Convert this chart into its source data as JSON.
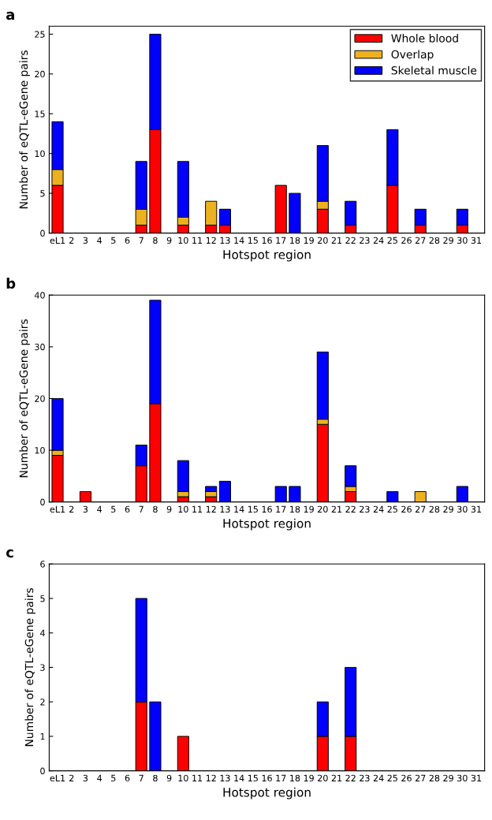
{
  "chart_data": [
    {
      "type": "bar",
      "title": "a",
      "xlabel": "Hotspot region",
      "ylabel": "Number of eQTL-eGene pairs",
      "stacked": true,
      "legend": "top right",
      "ylim": [
        0,
        26
      ],
      "yticks": [
        0,
        5,
        10,
        15,
        20,
        25
      ],
      "grid": false,
      "categories": [
        "eL1",
        "2",
        "3",
        "4",
        "5",
        "6",
        "7",
        "8",
        "9",
        "10",
        "11",
        "12",
        "13",
        "14",
        "15",
        "16",
        "17",
        "18",
        "19",
        "20",
        "21",
        "22",
        "23",
        "24",
        "25",
        "26",
        "27",
        "28",
        "29",
        "30",
        "31"
      ],
      "series": [
        {
          "name": "Whole blood",
          "color": "#ff0000",
          "values": [
            6,
            0,
            0,
            0,
            0,
            0,
            1,
            13,
            0,
            1,
            0,
            1,
            1,
            0,
            0,
            0,
            6,
            0,
            0,
            3,
            0,
            1,
            0,
            0,
            6,
            0,
            1,
            0,
            0,
            1,
            0
          ]
        },
        {
          "name": "Overlap",
          "color": "#edb120",
          "values": [
            2,
            0,
            0,
            0,
            0,
            0,
            2,
            0,
            0,
            1,
            0,
            3,
            0,
            0,
            0,
            0,
            0,
            0,
            0,
            1,
            0,
            0,
            0,
            0,
            0,
            0,
            0,
            0,
            0,
            0,
            0
          ]
        },
        {
          "name": "Skeletal muscle",
          "color": "#0000ff",
          "values": [
            6,
            0,
            0,
            0,
            0,
            0,
            6,
            12,
            0,
            7,
            0,
            0,
            2,
            0,
            0,
            0,
            0,
            5,
            0,
            7,
            0,
            3,
            0,
            0,
            7,
            0,
            2,
            0,
            0,
            2,
            0
          ]
        }
      ]
    },
    {
      "type": "bar",
      "title": "b",
      "xlabel": "Hotspot region",
      "ylabel": "Number of eQTL-eGene pairs",
      "stacked": true,
      "ylim": [
        0,
        40
      ],
      "yticks": [
        0,
        10,
        20,
        30,
        40
      ],
      "grid": false,
      "categories": [
        "eL1",
        "2",
        "3",
        "4",
        "5",
        "6",
        "7",
        "8",
        "9",
        "10",
        "11",
        "12",
        "13",
        "14",
        "15",
        "16",
        "17",
        "18",
        "19",
        "20",
        "21",
        "22",
        "23",
        "24",
        "25",
        "26",
        "27",
        "28",
        "29",
        "30",
        "31"
      ],
      "series": [
        {
          "color": "#ff0000",
          "values": [
            9,
            0,
            2,
            0,
            0,
            0,
            7,
            19,
            0,
            1,
            0,
            1,
            0,
            0,
            0,
            0,
            0,
            0,
            0,
            15,
            0,
            2,
            0,
            0,
            0,
            0,
            0,
            0,
            0,
            0,
            0
          ]
        },
        {
          "color": "#edb120",
          "values": [
            1,
            0,
            0,
            0,
            0,
            0,
            0,
            0,
            0,
            1,
            0,
            1,
            0,
            0,
            0,
            0,
            0,
            0,
            0,
            1,
            0,
            1,
            0,
            0,
            0,
            0,
            2,
            0,
            0,
            0,
            0
          ]
        },
        {
          "color": "#0000ff",
          "values": [
            10,
            0,
            0,
            0,
            0,
            0,
            4,
            20,
            0,
            6,
            0,
            1,
            4,
            0,
            0,
            0,
            3,
            3,
            0,
            13,
            0,
            4,
            0,
            0,
            2,
            0,
            0,
            0,
            0,
            3,
            0
          ]
        }
      ]
    },
    {
      "type": "bar",
      "title": "c",
      "xlabel": "Hotspot region",
      "ylabel": "Number of eQTL-eGene pairs",
      "stacked": true,
      "ylim": [
        0,
        6
      ],
      "yticks": [
        0,
        1,
        2,
        3,
        4,
        5,
        6
      ],
      "grid": false,
      "categories": [
        "eL1",
        "2",
        "3",
        "4",
        "5",
        "6",
        "7",
        "8",
        "9",
        "10",
        "11",
        "12",
        "13",
        "14",
        "15",
        "16",
        "17",
        "18",
        "19",
        "20",
        "21",
        "22",
        "23",
        "24",
        "25",
        "26",
        "27",
        "28",
        "29",
        "30",
        "31"
      ],
      "series": [
        {
          "color": "#ff0000",
          "values": [
            null,
            null,
            null,
            null,
            null,
            null,
            2,
            null,
            null,
            1,
            null,
            null,
            null,
            null,
            null,
            null,
            null,
            null,
            null,
            1,
            null,
            1,
            null,
            null,
            null,
            null,
            null,
            null,
            null,
            null,
            null
          ]
        },
        {
          "color": "#0000ff",
          "values": [
            null,
            null,
            null,
            null,
            null,
            null,
            3,
            2,
            null,
            null,
            null,
            null,
            null,
            null,
            null,
            null,
            null,
            null,
            null,
            1,
            null,
            2,
            null,
            null,
            null,
            null,
            null,
            null,
            null,
            null,
            null
          ]
        }
      ]
    }
  ]
}
